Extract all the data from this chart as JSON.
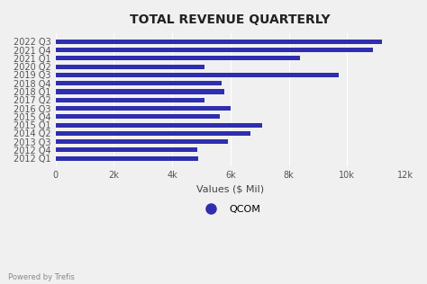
{
  "title": "TOTAL REVENUE QUARTERLY",
  "xlabel": "Values ($ Mil)",
  "legend_label": "QCOM",
  "bar_color": "#2E2EAE",
  "bg_color": "#f0f0f0",
  "powered_by": "Powered by Trefis",
  "categories": [
    "2012 Q1",
    "2012 Q4",
    "2013 Q3",
    "2014 Q2",
    "2015 Q1",
    "2015 Q4",
    "2016 Q3",
    "2017 Q2",
    "2018 Q1",
    "2018 Q4",
    "2019 Q3",
    "2020 Q2",
    "2021 Q1",
    "2021 Q4",
    "2022 Q3"
  ],
  "values": [
    4900,
    4850,
    5900,
    6700,
    7100,
    5650,
    6000,
    5100,
    5800,
    5700,
    9700,
    5100,
    8400,
    10900,
    11200
  ],
  "xlim": [
    0,
    12000
  ],
  "xticks": [
    0,
    2000,
    4000,
    6000,
    8000,
    10000,
    12000
  ],
  "xtick_labels": [
    "0",
    "2k",
    "4k",
    "6k",
    "8k",
    "10k",
    "12k"
  ]
}
